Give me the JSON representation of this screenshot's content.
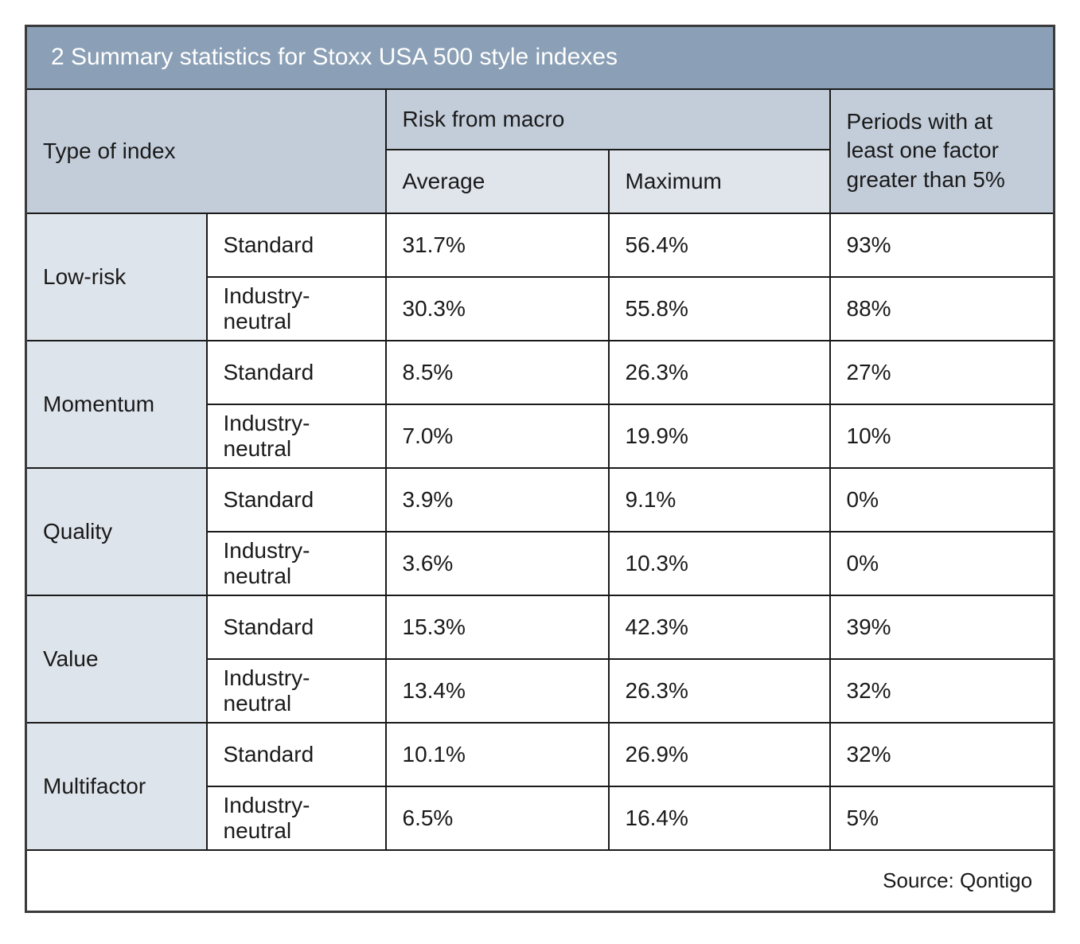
{
  "title": "2 Summary statistics for Stoxx USA 500 style indexes",
  "source": "Source: Qontigo",
  "colors": {
    "title_bg": "#8BA0B6",
    "header_bg": "#C3CDDA",
    "subheader_bg": "#E0E5EC",
    "group_bg": "#DEE4EC",
    "border": "#1A1A1A",
    "outer_border": "#3A3A3A",
    "text": "#1A1A1A",
    "title_text": "#FFFFFF"
  },
  "header": {
    "type_of_index": "Type of index",
    "risk_from_macro": "Risk from macro",
    "average": "Average",
    "maximum": "Maximum",
    "periods": "Periods with at least one factor greater than 5%"
  },
  "table": {
    "groups": [
      {
        "label": "Low-risk",
        "rows": [
          {
            "variant": "Standard",
            "average": "31.7%",
            "maximum": "56.4%",
            "periods": "93%"
          },
          {
            "variant": "Industry-neutral",
            "average": "30.3%",
            "maximum": "55.8%",
            "periods": "88%"
          }
        ]
      },
      {
        "label": "Momentum",
        "rows": [
          {
            "variant": "Standard",
            "average": "8.5%",
            "maximum": "26.3%",
            "periods": "27%"
          },
          {
            "variant": "Industry-neutral",
            "average": "7.0%",
            "maximum": "19.9%",
            "periods": "10%"
          }
        ]
      },
      {
        "label": "Quality",
        "rows": [
          {
            "variant": "Standard",
            "average": "3.9%",
            "maximum": "9.1%",
            "periods": "0%"
          },
          {
            "variant": "Industry-neutral",
            "average": "3.6%",
            "maximum": "10.3%",
            "periods": "0%"
          }
        ]
      },
      {
        "label": "Value",
        "rows": [
          {
            "variant": "Standard",
            "average": "15.3%",
            "maximum": "42.3%",
            "periods": "39%"
          },
          {
            "variant": "Industry-neutral",
            "average": "13.4%",
            "maximum": "26.3%",
            "periods": "32%"
          }
        ]
      },
      {
        "label": "Multifactor",
        "rows": [
          {
            "variant": "Standard",
            "average": "10.1%",
            "maximum": "26.9%",
            "periods": "32%"
          },
          {
            "variant": "Industry-neutral",
            "average": "6.5%",
            "maximum": "16.4%",
            "periods": "5%"
          }
        ]
      }
    ]
  },
  "chart_data": {
    "type": "table",
    "title": "2 Summary statistics for Stoxx USA 500 style indexes",
    "columns": [
      "Type of index",
      "Variant",
      "Risk from macro - Average",
      "Risk from macro - Maximum",
      "Periods with at least one factor greater than 5%"
    ],
    "rows": [
      [
        "Low-risk",
        "Standard",
        "31.7%",
        "56.4%",
        "93%"
      ],
      [
        "Low-risk",
        "Industry-neutral",
        "30.3%",
        "55.8%",
        "88%"
      ],
      [
        "Momentum",
        "Standard",
        "8.5%",
        "26.3%",
        "27%"
      ],
      [
        "Momentum",
        "Industry-neutral",
        "7.0%",
        "19.9%",
        "10%"
      ],
      [
        "Quality",
        "Standard",
        "3.9%",
        "9.1%",
        "0%"
      ],
      [
        "Quality",
        "Industry-neutral",
        "3.6%",
        "10.3%",
        "0%"
      ],
      [
        "Value",
        "Standard",
        "15.3%",
        "42.3%",
        "39%"
      ],
      [
        "Value",
        "Industry-neutral",
        "13.4%",
        "26.3%",
        "32%"
      ],
      [
        "Multifactor",
        "Standard",
        "10.1%",
        "26.9%",
        "32%"
      ],
      [
        "Multifactor",
        "Industry-neutral",
        "6.5%",
        "16.4%",
        "5%"
      ]
    ],
    "source": "Source: Qontigo"
  }
}
